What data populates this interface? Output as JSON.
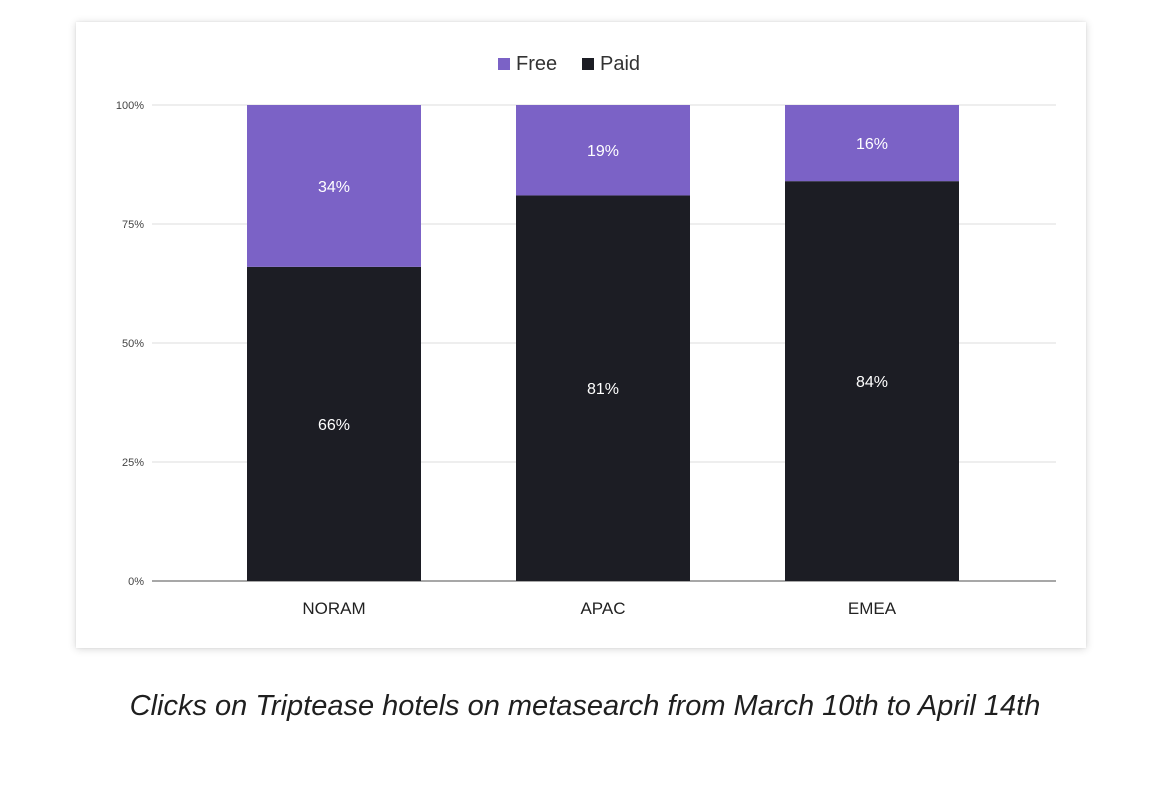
{
  "chart_data": {
    "type": "bar",
    "stacked": true,
    "categories": [
      "NORAM",
      "APAC",
      "EMEA"
    ],
    "series": [
      {
        "name": "Paid",
        "values": [
          66,
          81,
          84
        ],
        "color": "#1c1d24",
        "labels": [
          "66%",
          "81%",
          "84%"
        ]
      },
      {
        "name": "Free",
        "values": [
          34,
          19,
          16
        ],
        "color": "#7b62c6",
        "labels": [
          "34%",
          "19%",
          "16%"
        ]
      }
    ],
    "yticks": [
      "0%",
      "25%",
      "50%",
      "75%",
      "100%"
    ],
    "ylim": [
      0,
      100
    ],
    "legend": {
      "position": "top-center",
      "entries": [
        "Free",
        "Paid"
      ]
    },
    "grid": true
  },
  "caption": "Clicks on Triptease hotels on metasearch from March 10th to April 14th"
}
